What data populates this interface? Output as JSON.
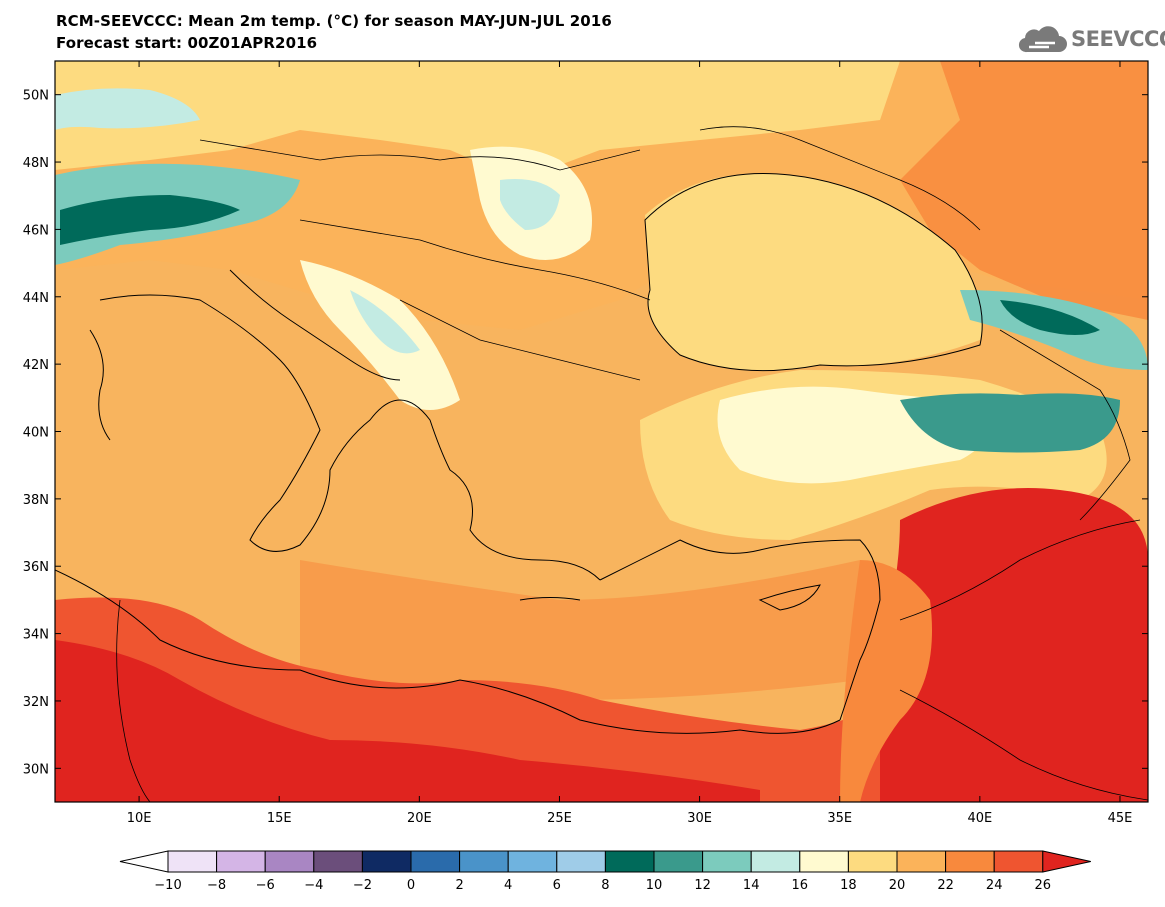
{
  "header": {
    "title_line1": "RCM-SEEVCCC: Mean 2m temp. (°C) for season MAY-JUN-JUL 2016",
    "title_line2": "Forecast start: 00Z01APR2016"
  },
  "logo": {
    "text": "SEEVCCC",
    "icon": "cloud-icon",
    "color": "#7a7a7a"
  },
  "map": {
    "lon_range": [
      7,
      46
    ],
    "lat_range": [
      29,
      51
    ],
    "lat_labels": [
      "30N",
      "32N",
      "34N",
      "36N",
      "38N",
      "40N",
      "42N",
      "44N",
      "46N",
      "48N",
      "50N"
    ],
    "lat_values": [
      30,
      32,
      34,
      36,
      38,
      40,
      42,
      44,
      46,
      48,
      50
    ],
    "lon_labels": [
      "10E",
      "15E",
      "20E",
      "25E",
      "30E",
      "35E",
      "40E",
      "45E"
    ],
    "lon_values": [
      10,
      15,
      20,
      25,
      30,
      35,
      40,
      45
    ]
  },
  "colorbar": {
    "unit": "°C",
    "labels": [
      "-10",
      "-8",
      "-6",
      "-4",
      "-2",
      "0",
      "2",
      "4",
      "6",
      "8",
      "10",
      "12",
      "14",
      "16",
      "18",
      "20",
      "22",
      "24",
      "26"
    ],
    "colors": [
      "#ffffff",
      "#efe3f7",
      "#d4b5e6",
      "#a986c3",
      "#6b4e7b",
      "#0f2a63",
      "#2a6bab",
      "#4a93c9",
      "#6fb3df",
      "#9fcce8",
      "#006a5a",
      "#3a9a8c",
      "#7ccbbd",
      "#c3ebe3",
      "#fffad0",
      "#fddb80",
      "#fbb35a",
      "#f8893d",
      "#ef5530",
      "#e0241f"
    ]
  },
  "legend_colors": {
    "sea_dominant": "#f8b45e",
    "hot": "#e0241f",
    "cool": "#006a5a"
  }
}
